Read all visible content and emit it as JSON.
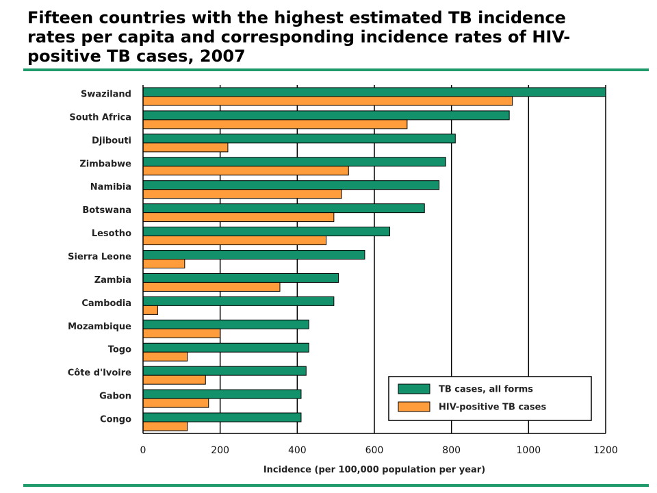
{
  "title": {
    "line1": "Fifteen countries with the highest estimated TB incidence",
    "line2": "rates per capita and corresponding incidence rates of HIV-",
    "line3": "positive TB cases, 2007"
  },
  "colors": {
    "tb": "#13916a",
    "hiv": "#ff9d3c",
    "accent_rule": "#1e9a6b"
  },
  "chart_data": {
    "type": "bar",
    "orientation": "horizontal",
    "categories": [
      "Swaziland",
      "South Africa",
      "Djibouti",
      "Zimbabwe",
      "Namibia",
      "Botswana",
      "Lesotho",
      "Sierra Leone",
      "Zambia",
      "Cambodia",
      "Mozambique",
      "Togo",
      "Côte d'Ivoire",
      "Gabon",
      "Congo"
    ],
    "series": [
      {
        "name": "TB cases, all forms",
        "values": [
          1200,
          950,
          810,
          785,
          768,
          730,
          640,
          575,
          507,
          495,
          430,
          430,
          423,
          410,
          410
        ]
      },
      {
        "name": "HIV-positive TB cases",
        "values": [
          958,
          685,
          220,
          533,
          515,
          495,
          475,
          108,
          355,
          38,
          200,
          115,
          162,
          170,
          115
        ]
      }
    ],
    "x_ticks": [
      "0",
      "200",
      "400",
      "600",
      "800",
      "1000",
      "1200"
    ],
    "xlim": [
      0,
      1200
    ],
    "xlabel": "Incidence (per 100,000 population per year)",
    "grid": "vertical",
    "legend_position": "bottom-right"
  }
}
